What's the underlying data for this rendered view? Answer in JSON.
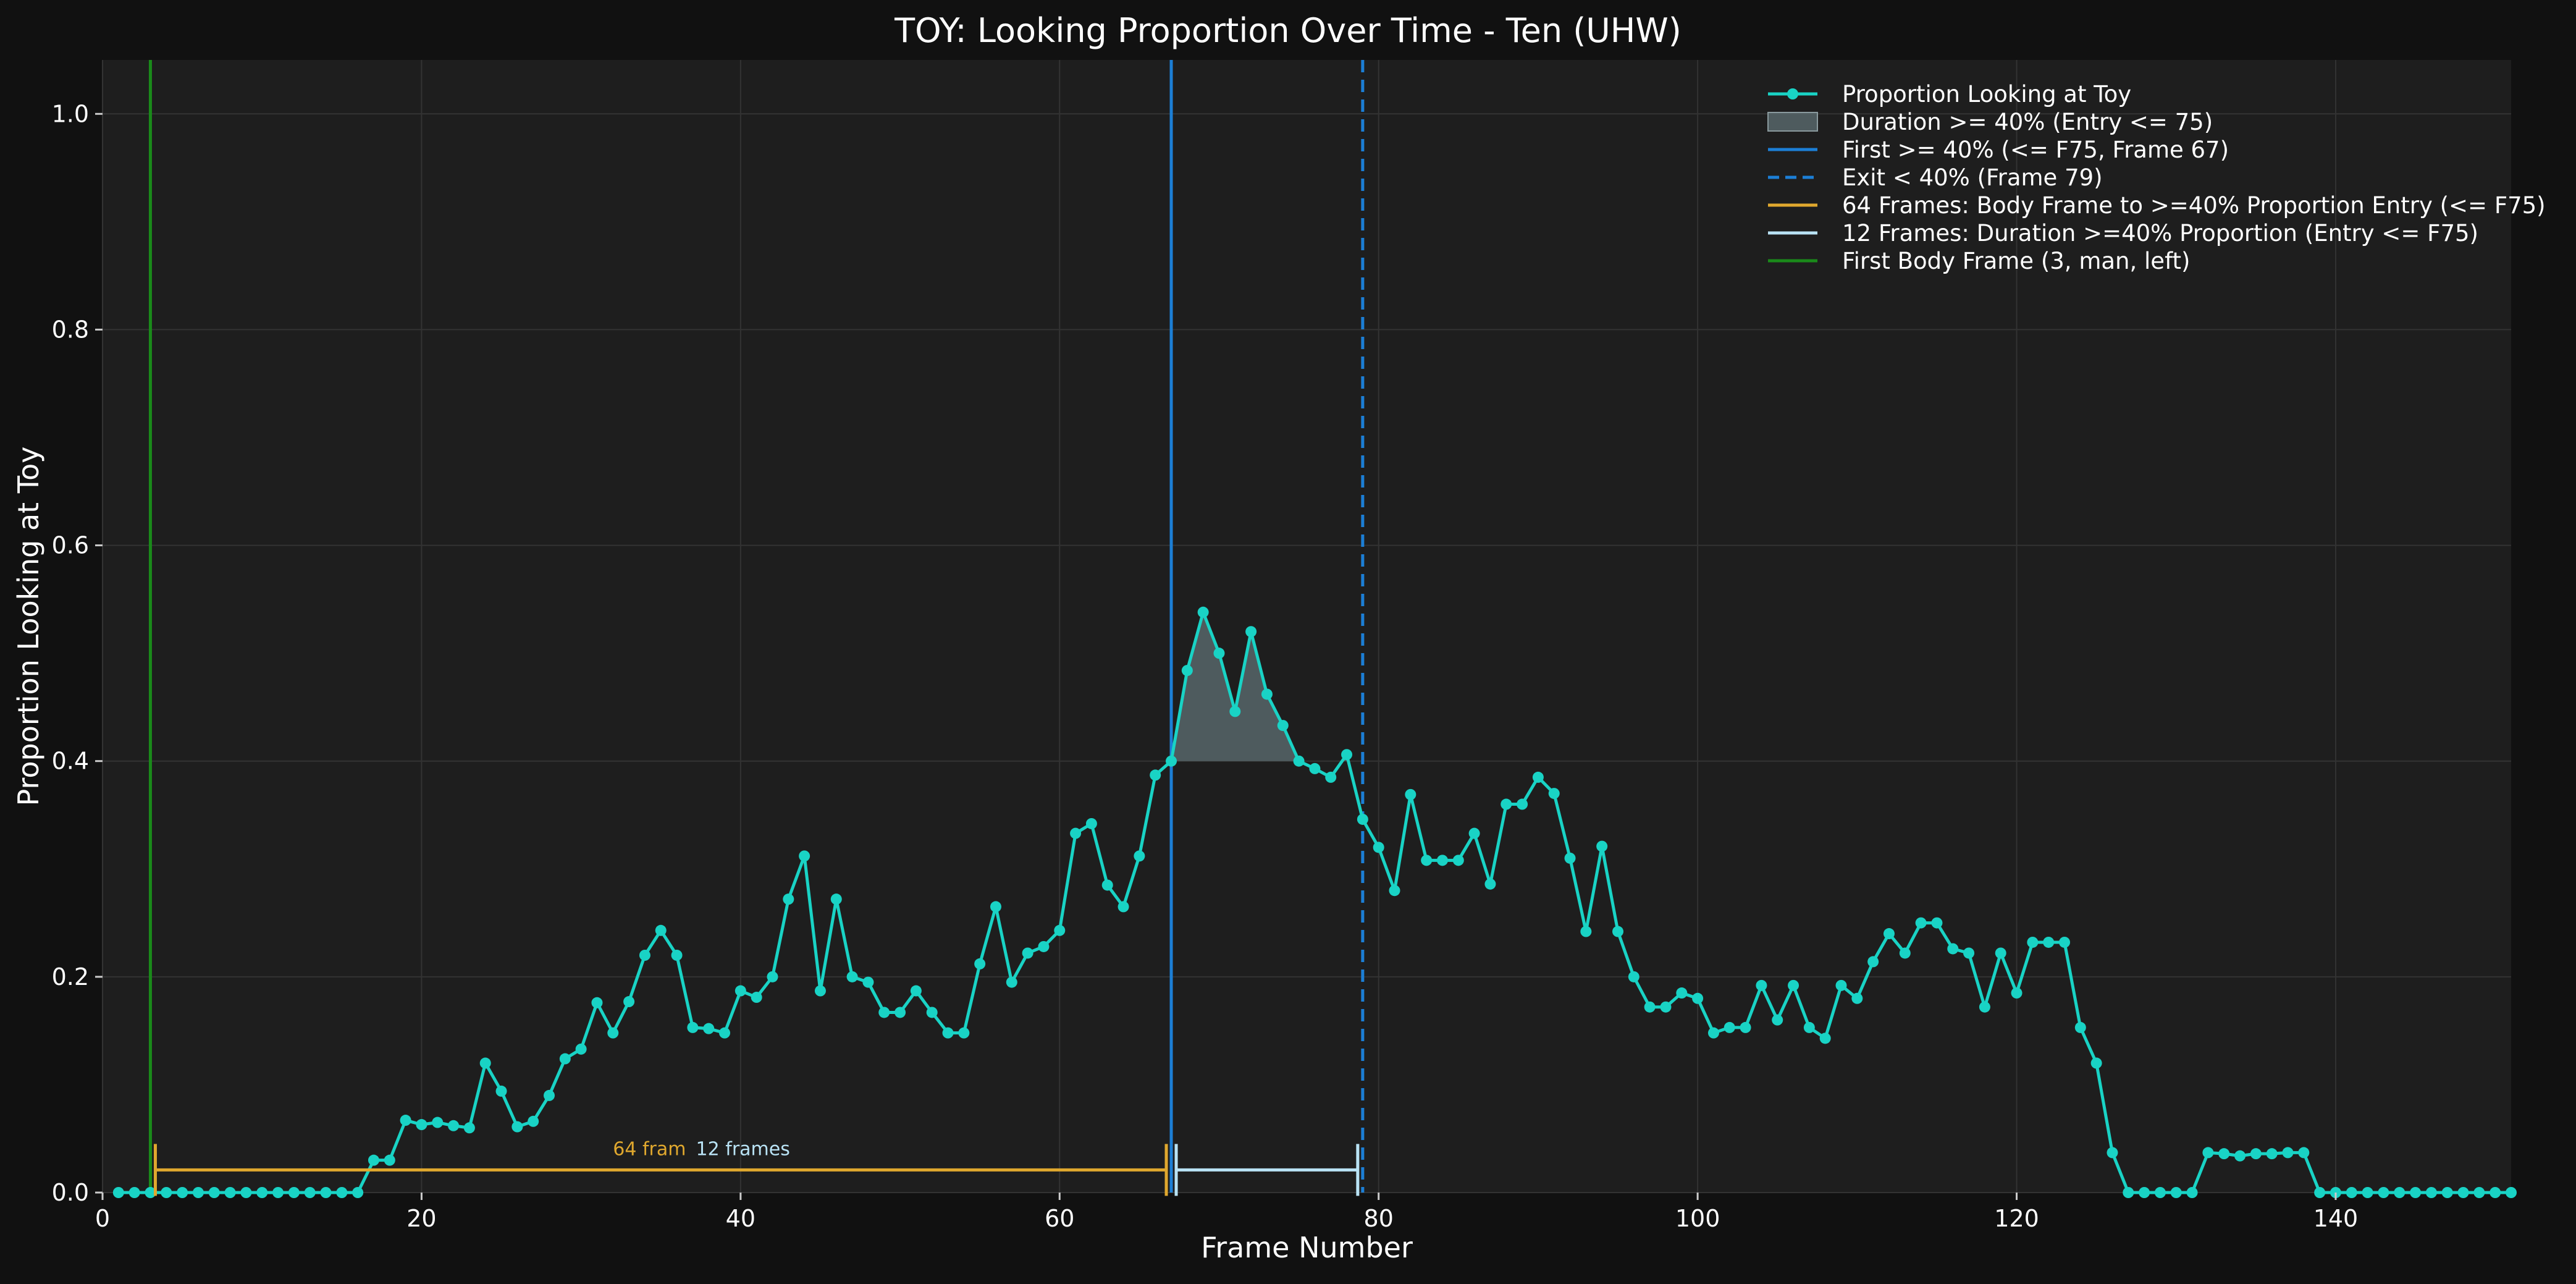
{
  "chart_data": {
    "type": "line",
    "title": "TOY: Looking Proportion Over Time - Ten (UHW)",
    "xlabel": "Frame Number",
    "ylabel": "Proportion Looking at Toy",
    "xlim": [
      0,
      151
    ],
    "ylim": [
      0,
      1.05
    ],
    "xticks": [
      0,
      20,
      40,
      60,
      80,
      100,
      120,
      140
    ],
    "yticks": [
      0.0,
      0.2,
      0.4,
      0.6,
      0.8,
      1.0
    ],
    "grid": true,
    "legend_position": "top-right",
    "colors": {
      "background": "#111111",
      "plot_background": "#1e1e1e",
      "series": "#19d3c5",
      "fill": "#5a6a6e",
      "entry_line": "#1c7fd6",
      "exit_line": "#1c7fd6",
      "body_bracket": "#e0a82e",
      "duration_bracket": "#b9e3f5",
      "first_body": "#1a8a1a",
      "grid": "#333333",
      "text": "#ffffff"
    },
    "series": [
      {
        "name": "Proportion Looking at Toy",
        "x": [
          1,
          2,
          3,
          4,
          5,
          6,
          7,
          8,
          9,
          10,
          11,
          12,
          13,
          14,
          15,
          16,
          17,
          18,
          19,
          20,
          21,
          22,
          23,
          24,
          25,
          26,
          27,
          28,
          29,
          30,
          31,
          32,
          33,
          34,
          35,
          36,
          37,
          38,
          39,
          40,
          41,
          42,
          43,
          44,
          45,
          46,
          47,
          48,
          49,
          50,
          51,
          52,
          53,
          54,
          55,
          56,
          57,
          58,
          59,
          60,
          61,
          62,
          63,
          64,
          65,
          66,
          67,
          68,
          69,
          70,
          71,
          72,
          73,
          74,
          75,
          76,
          77,
          78,
          79,
          80,
          81,
          82,
          83,
          84,
          85,
          86,
          87,
          88,
          89,
          90,
          91,
          92,
          93,
          94,
          95,
          96,
          97,
          98,
          99,
          100,
          101,
          102,
          103,
          104,
          105,
          106,
          107,
          108,
          109,
          110,
          111,
          112,
          113,
          114,
          115,
          116,
          117,
          118,
          119,
          120,
          121,
          122,
          123,
          124,
          125,
          126,
          127,
          128,
          129,
          130,
          131,
          132,
          133,
          134,
          135,
          136,
          137,
          138,
          139,
          140,
          141,
          142,
          143,
          144,
          145,
          146,
          147,
          148,
          149,
          150,
          151
        ],
        "y": [
          0,
          0,
          0,
          0,
          0,
          0,
          0,
          0,
          0,
          0,
          0,
          0,
          0,
          0,
          0,
          0,
          0.03,
          0.03,
          0.067,
          0.063,
          0.065,
          0.062,
          0.06,
          0.12,
          0.094,
          0.061,
          0.066,
          0.09,
          0.124,
          0.133,
          0.176,
          0.148,
          0.177,
          0.22,
          0.243,
          0.22,
          0.153,
          0.152,
          0.148,
          0.187,
          0.181,
          0.2,
          0.272,
          0.312,
          0.187,
          0.272,
          0.2,
          0.195,
          0.167,
          0.167,
          0.187,
          0.167,
          0.148,
          0.148,
          0.212,
          0.265,
          0.195,
          0.222,
          0.228,
          0.243,
          0.333,
          0.342,
          0.285,
          0.265,
          0.312,
          0.387,
          0.4,
          0.484,
          0.538,
          0.5,
          0.446,
          0.52,
          0.462,
          0.433,
          0.4,
          0.393,
          0.385,
          0.406,
          0.346,
          0.32,
          0.28,
          0.369,
          0.308,
          0.308,
          0.308,
          0.333,
          0.286,
          0.36,
          0.36,
          0.385,
          0.37,
          0.31,
          0.242,
          0.321,
          0.242,
          0.2,
          0.172,
          0.172,
          0.185,
          0.18,
          0.148,
          0.153,
          0.153,
          0.192,
          0.16,
          0.192,
          0.153,
          0.143,
          0.192,
          0.18,
          0.214,
          0.24,
          0.222,
          0.25,
          0.25,
          0.226,
          0.222,
          0.172,
          0.222,
          0.185,
          0.232,
          0.232,
          0.232,
          0.153,
          0.12,
          0.037,
          0,
          0,
          0,
          0,
          0,
          0.037,
          0.036,
          0.034,
          0.036,
          0.036,
          0.037,
          0.037,
          0,
          0,
          0,
          0,
          0,
          0,
          0,
          0,
          0,
          0,
          0,
          0,
          0
        ]
      }
    ],
    "threshold": 0.4,
    "fill_region": {
      "name": "Duration >= 40% (Entry <= 75)",
      "x_start": 67,
      "x_end": 79
    },
    "vertical_lines": [
      {
        "name": "First >= 40% (<= F75, Frame 67)",
        "x": 67,
        "style": "solid"
      },
      {
        "name": "Exit < 40% (Frame 79)",
        "x": 79,
        "style": "dashed"
      },
      {
        "name": "First Body Frame (3, man, left)",
        "x": 3,
        "style": "solid"
      }
    ],
    "brackets": [
      {
        "name": "64 Frames: Body Frame to >=40% Proportion Entry (<= F75)",
        "x_start": 3,
        "x_end": 67,
        "y": 0.021,
        "label": "64 fram"
      },
      {
        "name": "12 Frames: Duration >=40% Proportion (Entry <= F75)",
        "x_start": 67,
        "x_end": 79,
        "y": 0.021,
        "label": "12 frames"
      }
    ],
    "legend": [
      "Proportion Looking at Toy",
      "Duration >= 40% (Entry <= 75)",
      "First >= 40% (<= F75, Frame 67)",
      "Exit < 40% (Frame 79)",
      "64 Frames: Body Frame to >=40% Proportion Entry (<= F75)",
      "12 Frames: Duration >=40% Proportion (Entry <= F75)",
      "First Body Frame (3, man, left)"
    ]
  }
}
